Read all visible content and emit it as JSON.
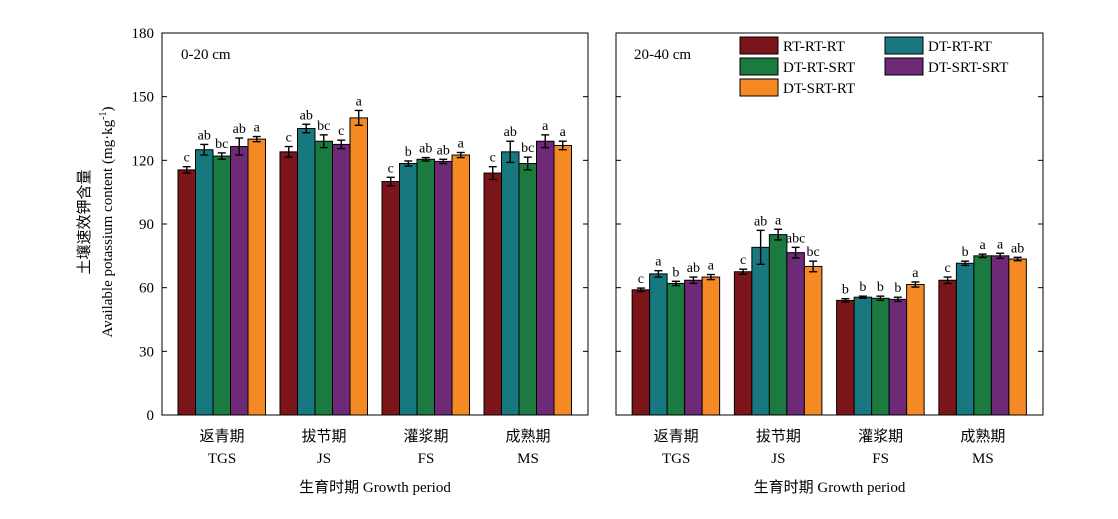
{
  "chart_data": {
    "type": "bar",
    "ylabel_cn": "土壤速效钾含量",
    "ylabel_en": "Available potassium content (mg·kg",
    "ylabel_sup": "-1",
    "ylabel_end": ")",
    "ylim": [
      0,
      180
    ],
    "yticks": [
      "0",
      "30",
      "60",
      "90",
      "120",
      "150",
      "180"
    ],
    "xlabel": "生育时期 Growth period",
    "categories_cn": [
      "返青期",
      "拔节期",
      "灌浆期",
      "成熟期"
    ],
    "categories_en": [
      "TGS",
      "JS",
      "FS",
      "MS"
    ],
    "series": [
      {
        "name": "RT-RT-RT",
        "color": "#7b1519"
      },
      {
        "name": "DT-RT-RT",
        "color": "#17787f"
      },
      {
        "name": "DT-RT-SRT",
        "color": "#1a7a40"
      },
      {
        "name": "DT-SRT-SRT",
        "color": "#6e2a77"
      },
      {
        "name": "DT-SRT-RT",
        "color": "#f58a25"
      }
    ],
    "legend_position": "top-right",
    "panels": [
      {
        "label": "0-20 cm",
        "values": [
          [
            115.5,
            125.0,
            122.0,
            126.5,
            130.0
          ],
          [
            124.0,
            135.0,
            129.0,
            127.5,
            140.0
          ],
          [
            110.0,
            118.5,
            120.5,
            119.5,
            122.5
          ],
          [
            114.0,
            124.0,
            118.5,
            129.0,
            127.0
          ]
        ],
        "errors": [
          [
            1.5,
            2.5,
            1.5,
            4.0,
            1.2
          ],
          [
            2.5,
            2.0,
            3.0,
            2.0,
            3.5
          ],
          [
            2.0,
            1.2,
            0.8,
            1.0,
            1.2
          ],
          [
            3.0,
            5.0,
            3.0,
            3.0,
            2.0
          ]
        ],
        "letters": [
          [
            "c",
            "ab",
            "bc",
            "ab",
            "a"
          ],
          [
            "c",
            "ab",
            "bc",
            "c",
            "a"
          ],
          [
            "c",
            "b",
            "ab",
            "ab",
            "a"
          ],
          [
            "c",
            "ab",
            "bc",
            "a",
            "a"
          ]
        ]
      },
      {
        "label": "20-40 cm",
        "values": [
          [
            59.0,
            66.5,
            62.0,
            63.5,
            65.0
          ],
          [
            67.5,
            79.0,
            85.0,
            76.5,
            70.0
          ],
          [
            54.0,
            55.5,
            55.0,
            54.5,
            61.5
          ],
          [
            63.5,
            71.5,
            75.0,
            75.0,
            73.5
          ]
        ],
        "errors": [
          [
            0.8,
            1.5,
            1.0,
            1.5,
            1.2
          ],
          [
            1.2,
            8.0,
            2.5,
            2.5,
            2.5
          ],
          [
            0.8,
            0.5,
            1.0,
            1.0,
            1.2
          ],
          [
            1.5,
            1.0,
            0.8,
            1.2,
            0.8
          ]
        ],
        "letters": [
          [
            "c",
            "a",
            "b",
            "ab",
            "a"
          ],
          [
            "c",
            "ab",
            "a",
            "abc",
            "bc"
          ],
          [
            "b",
            "b",
            "b",
            "b",
            "a"
          ],
          [
            "c",
            "b",
            "a",
            "a",
            "ab"
          ]
        ]
      }
    ]
  }
}
